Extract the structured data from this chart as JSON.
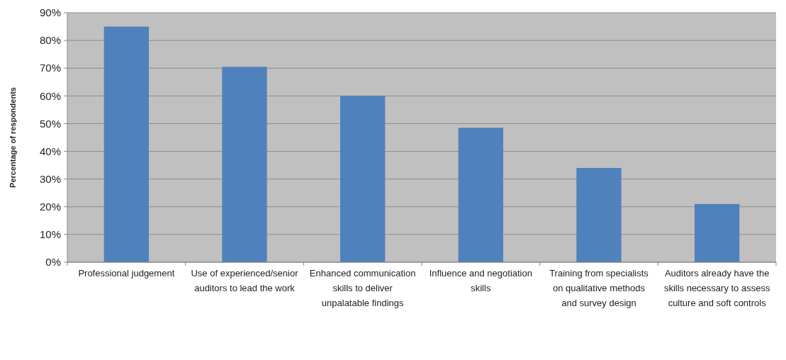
{
  "chart_data": {
    "type": "bar",
    "ylabel": "Percentage of respondents",
    "categories": [
      "Professional judgement",
      "Use of experienced/senior auditors to lead the work",
      "Enhanced communication skills to deliver unpalatable findings",
      "Influence and negotiation skills",
      "Training from specialists on qualitative methods and survey design",
      "Auditors already have the skills necessary to assess culture and soft controls"
    ],
    "values": [
      85,
      70.5,
      60,
      48.5,
      34,
      21
    ],
    "color": "#4f81bd",
    "ylim": [
      0,
      90
    ],
    "yticks": [
      {
        "value": 0,
        "label": "0%"
      },
      {
        "value": 10,
        "label": "10%"
      },
      {
        "value": 20,
        "label": "20%"
      },
      {
        "value": 30,
        "label": "30%"
      },
      {
        "value": 40,
        "label": "40%"
      },
      {
        "value": 50,
        "label": "50%"
      },
      {
        "value": 60,
        "label": "60%"
      },
      {
        "value": 70,
        "label": "70%"
      },
      {
        "value": 80,
        "label": "80%"
      },
      {
        "value": 90,
        "label": "90%"
      }
    ],
    "grid": true
  }
}
